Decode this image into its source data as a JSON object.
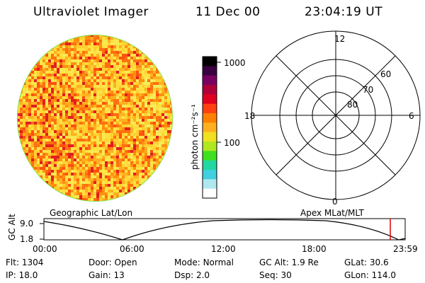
{
  "header": {
    "instrument": "Ultraviolet Imager",
    "date": "11 Dec 00",
    "time": "23:04:19 UT"
  },
  "colorbar": {
    "unit_label": "photon cm⁻²s⁻¹",
    "tick_labels": [
      "1000",
      "100"
    ],
    "colors": [
      "#000000",
      "#3a0040",
      "#7a0060",
      "#b0003a",
      "#e00020",
      "#ff4010",
      "#ff8000",
      "#ffb020",
      "#f0e020",
      "#b0e820",
      "#40e020",
      "#20d8a0",
      "#40d0e0",
      "#b0e8f0",
      "#ffffff"
    ]
  },
  "polar": {
    "mlt_labels": {
      "top": "12",
      "left": "18",
      "right": "6",
      "bottom": "0"
    },
    "lat_labels": [
      "60",
      "70",
      "80"
    ]
  },
  "timeline": {
    "left_title": "Geographic Lat/Lon",
    "right_title": "Apex MLat/MLT",
    "y_axis_label": "GC Alt",
    "y_ticks": [
      "9.0",
      "1.8"
    ],
    "x_ticks": [
      "00:00",
      "06:00",
      "12:00",
      "18:00",
      "23:59"
    ],
    "current_marker_color": "#e00000"
  },
  "footer": {
    "flt_label": "Flt:",
    "flt_value": "1304",
    "ip_label": "IP:",
    "ip_value": "18.0",
    "door_label": "Door:",
    "door_value": "Open",
    "gain_label": "Gain:",
    "gain_value": "13",
    "mode_label": "Mode:",
    "mode_value": "Normal",
    "dsp_label": "Dsp:",
    "dsp_value": "2.0",
    "gcalt_label": "GC Alt:",
    "gcalt_value": "1.9 Re",
    "seq_label": "Seq:",
    "seq_value": "30",
    "glat_label": "GLat:",
    "glat_value": "30.6",
    "glon_label": "GLon:",
    "glon_value": "114.0"
  }
}
